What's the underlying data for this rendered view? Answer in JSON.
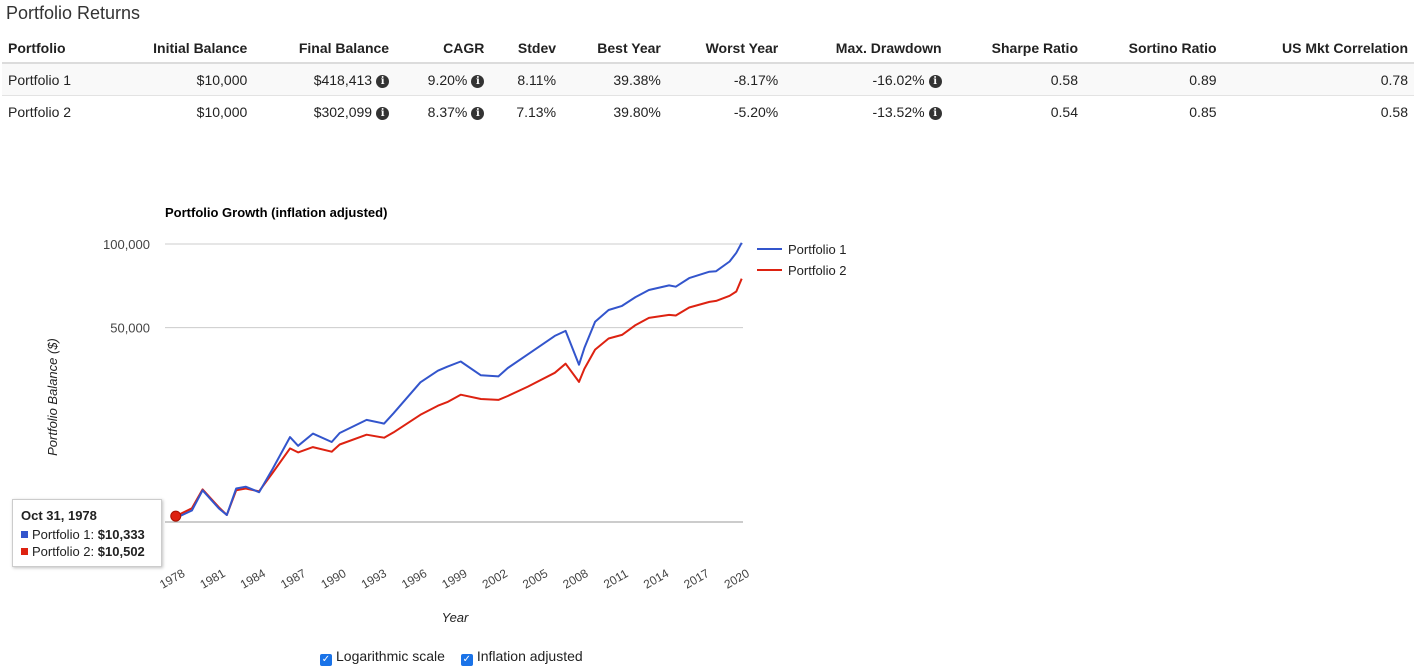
{
  "title": "Portfolio Returns",
  "table": {
    "headers": [
      "Portfolio",
      "Initial Balance",
      "Final Balance",
      "CAGR",
      "Stdev",
      "Best Year",
      "Worst Year",
      "Max. Drawdown",
      "Sharpe Ratio",
      "Sortino Ratio",
      "US Mkt Correlation"
    ],
    "rows": [
      [
        "Portfolio 1",
        "$10,000",
        "$418,413",
        "9.20%",
        "8.11%",
        "39.38%",
        "-8.17%",
        "-16.02%",
        "0.58",
        "0.89",
        "0.78"
      ],
      [
        "Portfolio 2",
        "$10,000",
        "$302,099",
        "8.37%",
        "7.13%",
        "39.80%",
        "-5.20%",
        "-13.52%",
        "0.54",
        "0.85",
        "0.58"
      ]
    ]
  },
  "chart_data": {
    "type": "line",
    "title": "Portfolio Growth (inflation adjusted)",
    "xlabel": "Year",
    "ylabel": "Portfolio Balance ($)",
    "y_scale": "log",
    "y_ticks": [
      "50,000",
      "100,000"
    ],
    "x_ticks": [
      "1978",
      "1981",
      "1984",
      "1987",
      "1990",
      "1993",
      "1996",
      "1999",
      "2002",
      "2005",
      "2008",
      "2011",
      "2014",
      "2017",
      "2020"
    ],
    "legend_position": "right",
    "series": [
      {
        "name": "Portfolio 1",
        "color": "#3355cc",
        "x": [
          1978.8,
          1980.0,
          1980.8,
          1982.0,
          1982.6,
          1983.3,
          1984.0,
          1985.0,
          1986.0,
          1987.3,
          1987.9,
          1989.0,
          1990.4,
          1991.0,
          1993.0,
          1994.3,
          1995.0,
          1997.0,
          1998.3,
          1999.0,
          2000.0,
          2001.5,
          2002.8,
          2003.5,
          2005.0,
          2007.0,
          2007.8,
          2008.8,
          2009.2,
          2010.0,
          2011.0,
          2012.0,
          2013.0,
          2014.0,
          2015.5,
          2016.0,
          2017.0,
          2018.5,
          2019.0,
          2020.0,
          2020.5,
          2020.9
        ],
        "y": [
          10333,
          11000,
          13000,
          11200,
          10600,
          13200,
          13400,
          12800,
          15500,
          20200,
          18800,
          20800,
          19400,
          20900,
          23300,
          22600,
          24600,
          31800,
          35000,
          36200,
          37800,
          33700,
          33400,
          35800,
          40100,
          46700,
          48700,
          36800,
          42300,
          52500,
          57900,
          59900,
          64400,
          68300,
          71000,
          70200,
          75400,
          79500,
          79800,
          86500,
          93000,
          101000
        ]
      },
      {
        "name": "Portfolio 2",
        "color": "#dd2211",
        "x": [
          1978.8,
          1980.0,
          1980.8,
          1982.0,
          1982.6,
          1983.3,
          1984.0,
          1985.0,
          1986.0,
          1987.3,
          1987.9,
          1989.0,
          1990.4,
          1991.0,
          1993.0,
          1994.3,
          1995.0,
          1997.0,
          1998.3,
          1999.0,
          2000.0,
          2001.5,
          2002.8,
          2003.5,
          2005.0,
          2007.0,
          2007.8,
          2008.8,
          2009.2,
          2010.0,
          2011.0,
          2012.0,
          2013.0,
          2014.0,
          2015.5,
          2016.0,
          2017.0,
          2018.5,
          2019.0,
          2020.0,
          2020.5,
          2020.9
        ],
        "y": [
          10502,
          11200,
          13100,
          11300,
          10600,
          13000,
          13200,
          12900,
          15000,
          18400,
          17800,
          18600,
          17900,
          19000,
          20600,
          20100,
          21000,
          24300,
          26200,
          27000,
          28700,
          27700,
          27500,
          28400,
          30700,
          34400,
          37100,
          31900,
          35600,
          41700,
          45700,
          47100,
          51100,
          54200,
          55600,
          55300,
          59100,
          61900,
          62400,
          65100,
          67500,
          75000
        ]
      }
    ]
  },
  "tooltip": {
    "date": "Oct 31, 1978",
    "p1_label": "Portfolio 1:",
    "p1_value": "$10,333",
    "p2_label": "Portfolio 2:",
    "p2_value": "$10,502"
  },
  "options": {
    "log_label": "Logarithmic scale",
    "log_checked": true,
    "infl_label": "Inflation adjusted",
    "infl_checked": true
  }
}
